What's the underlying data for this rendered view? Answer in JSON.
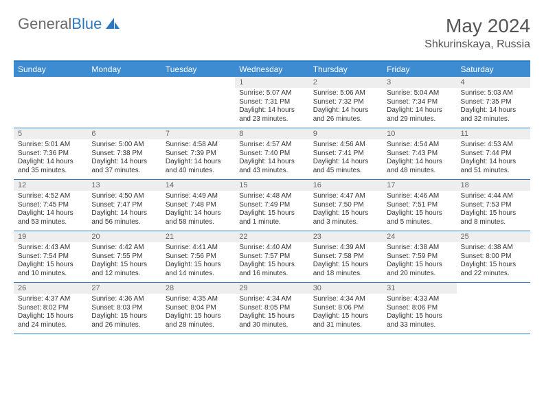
{
  "logo": {
    "word1": "General",
    "word2": "Blue"
  },
  "title": {
    "month": "May 2024",
    "location": "Shkurinskaya, Russia"
  },
  "colors": {
    "header_bg": "#3d8bd0",
    "border": "#2d79c0",
    "daynum_bg": "#eeeeee",
    "text": "#333333",
    "logo_gray": "#6a6a6a",
    "logo_blue": "#2d79c0"
  },
  "day_names": [
    "Sunday",
    "Monday",
    "Tuesday",
    "Wednesday",
    "Thursday",
    "Friday",
    "Saturday"
  ],
  "weeks": [
    [
      {
        "n": "",
        "sr": "",
        "ss": "",
        "dl": ""
      },
      {
        "n": "",
        "sr": "",
        "ss": "",
        "dl": ""
      },
      {
        "n": "",
        "sr": "",
        "ss": "",
        "dl": ""
      },
      {
        "n": "1",
        "sr": "Sunrise: 5:07 AM",
        "ss": "Sunset: 7:31 PM",
        "dl": "Daylight: 14 hours and 23 minutes."
      },
      {
        "n": "2",
        "sr": "Sunrise: 5:06 AM",
        "ss": "Sunset: 7:32 PM",
        "dl": "Daylight: 14 hours and 26 minutes."
      },
      {
        "n": "3",
        "sr": "Sunrise: 5:04 AM",
        "ss": "Sunset: 7:34 PM",
        "dl": "Daylight: 14 hours and 29 minutes."
      },
      {
        "n": "4",
        "sr": "Sunrise: 5:03 AM",
        "ss": "Sunset: 7:35 PM",
        "dl": "Daylight: 14 hours and 32 minutes."
      }
    ],
    [
      {
        "n": "5",
        "sr": "Sunrise: 5:01 AM",
        "ss": "Sunset: 7:36 PM",
        "dl": "Daylight: 14 hours and 35 minutes."
      },
      {
        "n": "6",
        "sr": "Sunrise: 5:00 AM",
        "ss": "Sunset: 7:38 PM",
        "dl": "Daylight: 14 hours and 37 minutes."
      },
      {
        "n": "7",
        "sr": "Sunrise: 4:58 AM",
        "ss": "Sunset: 7:39 PM",
        "dl": "Daylight: 14 hours and 40 minutes."
      },
      {
        "n": "8",
        "sr": "Sunrise: 4:57 AM",
        "ss": "Sunset: 7:40 PM",
        "dl": "Daylight: 14 hours and 43 minutes."
      },
      {
        "n": "9",
        "sr": "Sunrise: 4:56 AM",
        "ss": "Sunset: 7:41 PM",
        "dl": "Daylight: 14 hours and 45 minutes."
      },
      {
        "n": "10",
        "sr": "Sunrise: 4:54 AM",
        "ss": "Sunset: 7:43 PM",
        "dl": "Daylight: 14 hours and 48 minutes."
      },
      {
        "n": "11",
        "sr": "Sunrise: 4:53 AM",
        "ss": "Sunset: 7:44 PM",
        "dl": "Daylight: 14 hours and 51 minutes."
      }
    ],
    [
      {
        "n": "12",
        "sr": "Sunrise: 4:52 AM",
        "ss": "Sunset: 7:45 PM",
        "dl": "Daylight: 14 hours and 53 minutes."
      },
      {
        "n": "13",
        "sr": "Sunrise: 4:50 AM",
        "ss": "Sunset: 7:47 PM",
        "dl": "Daylight: 14 hours and 56 minutes."
      },
      {
        "n": "14",
        "sr": "Sunrise: 4:49 AM",
        "ss": "Sunset: 7:48 PM",
        "dl": "Daylight: 14 hours and 58 minutes."
      },
      {
        "n": "15",
        "sr": "Sunrise: 4:48 AM",
        "ss": "Sunset: 7:49 PM",
        "dl": "Daylight: 15 hours and 1 minute."
      },
      {
        "n": "16",
        "sr": "Sunrise: 4:47 AM",
        "ss": "Sunset: 7:50 PM",
        "dl": "Daylight: 15 hours and 3 minutes."
      },
      {
        "n": "17",
        "sr": "Sunrise: 4:46 AM",
        "ss": "Sunset: 7:51 PM",
        "dl": "Daylight: 15 hours and 5 minutes."
      },
      {
        "n": "18",
        "sr": "Sunrise: 4:44 AM",
        "ss": "Sunset: 7:53 PM",
        "dl": "Daylight: 15 hours and 8 minutes."
      }
    ],
    [
      {
        "n": "19",
        "sr": "Sunrise: 4:43 AM",
        "ss": "Sunset: 7:54 PM",
        "dl": "Daylight: 15 hours and 10 minutes."
      },
      {
        "n": "20",
        "sr": "Sunrise: 4:42 AM",
        "ss": "Sunset: 7:55 PM",
        "dl": "Daylight: 15 hours and 12 minutes."
      },
      {
        "n": "21",
        "sr": "Sunrise: 4:41 AM",
        "ss": "Sunset: 7:56 PM",
        "dl": "Daylight: 15 hours and 14 minutes."
      },
      {
        "n": "22",
        "sr": "Sunrise: 4:40 AM",
        "ss": "Sunset: 7:57 PM",
        "dl": "Daylight: 15 hours and 16 minutes."
      },
      {
        "n": "23",
        "sr": "Sunrise: 4:39 AM",
        "ss": "Sunset: 7:58 PM",
        "dl": "Daylight: 15 hours and 18 minutes."
      },
      {
        "n": "24",
        "sr": "Sunrise: 4:38 AM",
        "ss": "Sunset: 7:59 PM",
        "dl": "Daylight: 15 hours and 20 minutes."
      },
      {
        "n": "25",
        "sr": "Sunrise: 4:38 AM",
        "ss": "Sunset: 8:00 PM",
        "dl": "Daylight: 15 hours and 22 minutes."
      }
    ],
    [
      {
        "n": "26",
        "sr": "Sunrise: 4:37 AM",
        "ss": "Sunset: 8:02 PM",
        "dl": "Daylight: 15 hours and 24 minutes."
      },
      {
        "n": "27",
        "sr": "Sunrise: 4:36 AM",
        "ss": "Sunset: 8:03 PM",
        "dl": "Daylight: 15 hours and 26 minutes."
      },
      {
        "n": "28",
        "sr": "Sunrise: 4:35 AM",
        "ss": "Sunset: 8:04 PM",
        "dl": "Daylight: 15 hours and 28 minutes."
      },
      {
        "n": "29",
        "sr": "Sunrise: 4:34 AM",
        "ss": "Sunset: 8:05 PM",
        "dl": "Daylight: 15 hours and 30 minutes."
      },
      {
        "n": "30",
        "sr": "Sunrise: 4:34 AM",
        "ss": "Sunset: 8:06 PM",
        "dl": "Daylight: 15 hours and 31 minutes."
      },
      {
        "n": "31",
        "sr": "Sunrise: 4:33 AM",
        "ss": "Sunset: 8:06 PM",
        "dl": "Daylight: 15 hours and 33 minutes."
      },
      {
        "n": "",
        "sr": "",
        "ss": "",
        "dl": ""
      }
    ]
  ]
}
